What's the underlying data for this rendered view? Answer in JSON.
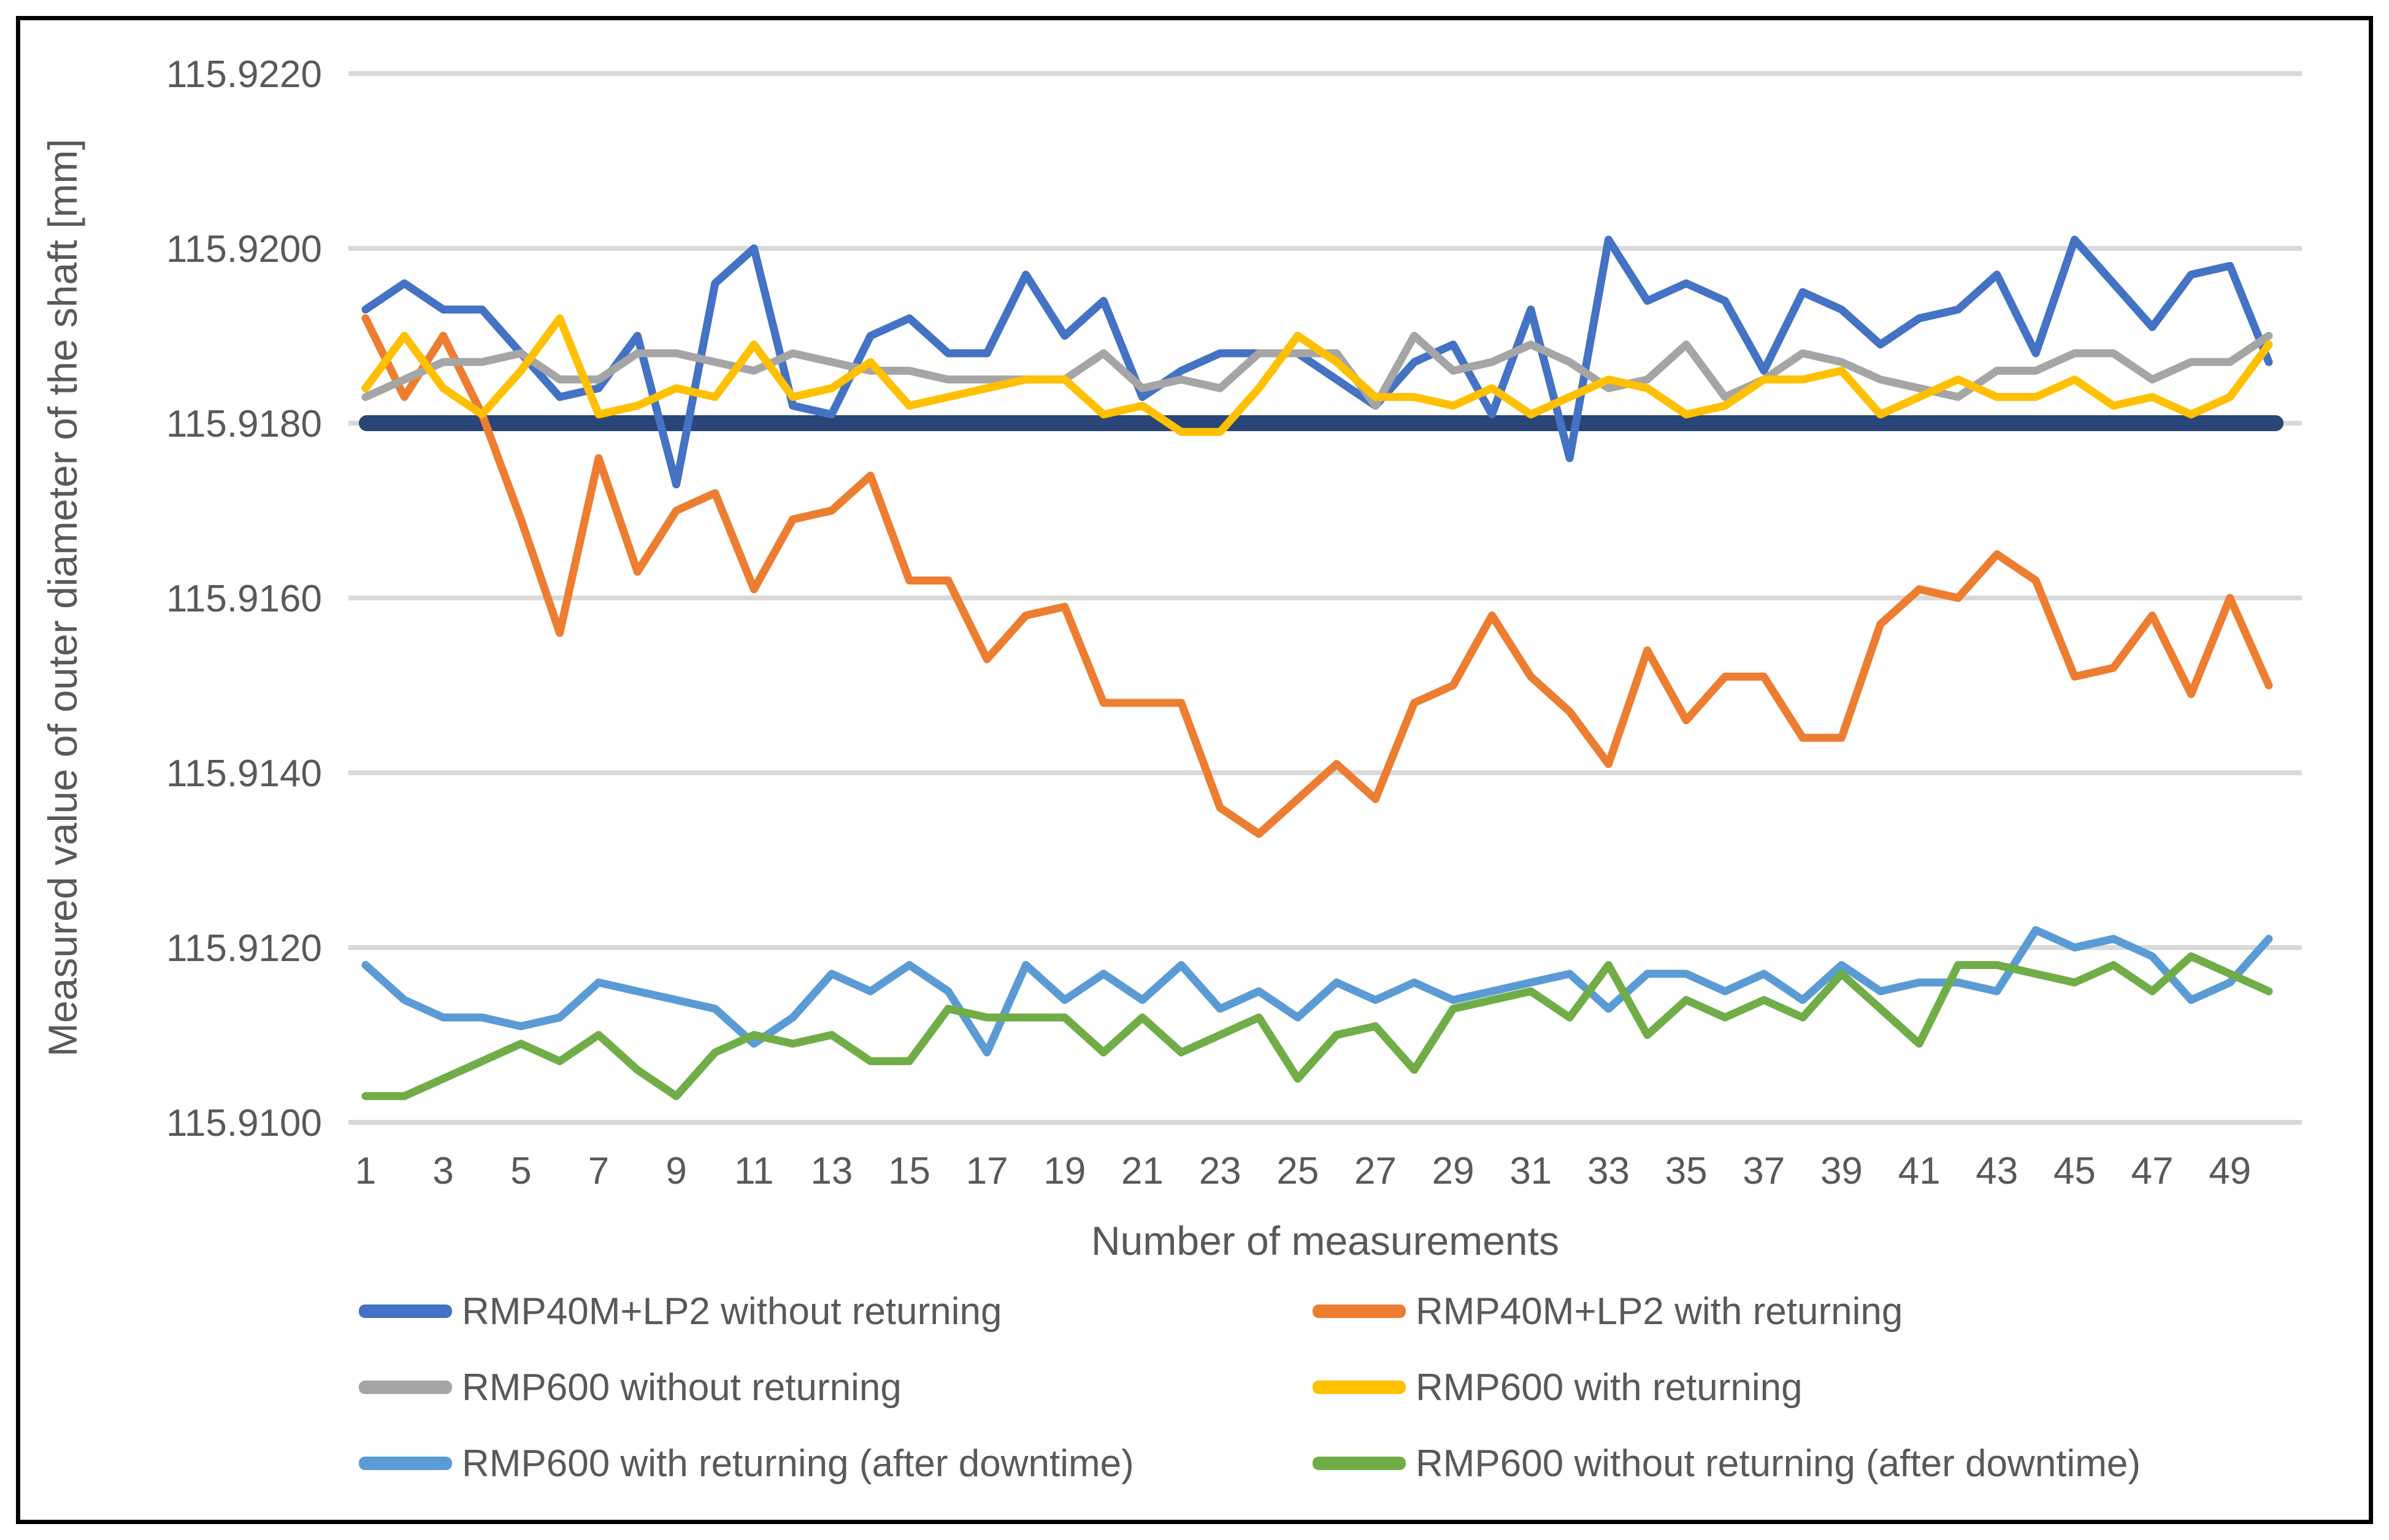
{
  "figure": {
    "background": "#ffffff",
    "border_color": "#000000",
    "text_color": "#595959",
    "gridline_color": "#d9d9d9"
  },
  "chart_data": {
    "type": "line",
    "title": "",
    "xlabel": "Number of measurements",
    "ylabel": "Measured value of outer diameter of the shaft [mm]",
    "x": [
      1,
      2,
      3,
      4,
      5,
      6,
      7,
      8,
      9,
      10,
      11,
      12,
      13,
      14,
      15,
      16,
      17,
      18,
      19,
      20,
      21,
      22,
      23,
      24,
      25,
      26,
      27,
      28,
      29,
      30,
      31,
      32,
      33,
      34,
      35,
      36,
      37,
      38,
      39,
      40,
      41,
      42,
      43,
      44,
      45,
      46,
      47,
      48,
      49,
      50
    ],
    "x_tick_labels": [
      "1",
      "3",
      "5",
      "7",
      "9",
      "11",
      "13",
      "15",
      "17",
      "19",
      "21",
      "23",
      "25",
      "27",
      "29",
      "31",
      "33",
      "35",
      "37",
      "39",
      "41",
      "43",
      "45",
      "47",
      "49"
    ],
    "y_ticks": [
      "115.9100",
      "115.9120",
      "115.9140",
      "115.9160",
      "115.9180",
      "115.9200",
      "115.9220"
    ],
    "ylim": [
      115.9095,
      115.9225
    ],
    "grid": "horizontal",
    "legend_position": "bottom-two-columns",
    "reference_line": {
      "name": "nominal-value-line",
      "value": 115.918,
      "color": "#2a4577"
    },
    "series": [
      {
        "name": "RMP40M+LP2 without returning",
        "color": "#4472c4",
        "values": [
          115.9193,
          115.9196,
          115.9193,
          115.9193,
          115.9188,
          115.9183,
          115.9184,
          115.919,
          115.9173,
          115.9196,
          115.92,
          115.9182,
          115.9181,
          115.919,
          115.9192,
          115.9188,
          115.9188,
          115.9197,
          115.919,
          115.9194,
          115.9183,
          115.9186,
          115.9188,
          115.9188,
          115.9188,
          115.9185,
          115.9182,
          115.9187,
          115.9189,
          115.9181,
          115.9193,
          115.9176,
          115.9201,
          115.9194,
          115.9196,
          115.9194,
          115.9186,
          115.9195,
          115.9193,
          115.9189,
          115.9192,
          115.9193,
          115.9197,
          115.9188,
          115.9201,
          115.9196,
          115.9191,
          115.9197,
          115.9198,
          115.9187
        ]
      },
      {
        "name": "RMP40M+LP2 with returning",
        "color": "#ed7d31",
        "values": [
          115.9192,
          115.9183,
          115.919,
          115.9181,
          115.9169,
          115.9156,
          115.9176,
          115.9163,
          115.917,
          115.9172,
          115.9161,
          115.9169,
          115.917,
          115.9174,
          115.9162,
          115.9162,
          115.9153,
          115.9158,
          115.9159,
          115.9148,
          115.9148,
          115.9148,
          115.9136,
          115.9133,
          115.9137,
          115.9141,
          115.9137,
          115.9148,
          115.915,
          115.9158,
          115.9151,
          115.9147,
          115.9141,
          115.9154,
          115.9146,
          115.9151,
          115.9151,
          115.9144,
          115.9144,
          115.9157,
          115.9161,
          115.916,
          115.9165,
          115.9162,
          115.9151,
          115.9152,
          115.9158,
          115.9149,
          115.916,
          115.915
        ]
      },
      {
        "name": "RMP600 without returning",
        "color": "#a5a5a5",
        "values": [
          115.9183,
          115.9185,
          115.9187,
          115.9187,
          115.9188,
          115.9185,
          115.9185,
          115.9188,
          115.9188,
          115.9187,
          115.9186,
          115.9188,
          115.9187,
          115.9186,
          115.9186,
          115.9185,
          115.9185,
          115.9185,
          115.9185,
          115.9188,
          115.9184,
          115.9185,
          115.9184,
          115.9188,
          115.9188,
          115.9188,
          115.9182,
          115.919,
          115.9186,
          115.9187,
          115.9189,
          115.9187,
          115.9184,
          115.9185,
          115.9189,
          115.9183,
          115.9185,
          115.9188,
          115.9187,
          115.9185,
          115.9184,
          115.9183,
          115.9186,
          115.9186,
          115.9188,
          115.9188,
          115.9185,
          115.9187,
          115.9187,
          115.919
        ]
      },
      {
        "name": "RMP600 with returning",
        "color": "#ffc000",
        "values": [
          115.9184,
          115.919,
          115.9184,
          115.9181,
          115.9186,
          115.9192,
          115.9181,
          115.9182,
          115.9184,
          115.9183,
          115.9189,
          115.9183,
          115.9184,
          115.9187,
          115.9182,
          115.9183,
          115.9184,
          115.9185,
          115.9185,
          115.9181,
          115.9182,
          115.9179,
          115.9179,
          115.9184,
          115.919,
          115.9187,
          115.9183,
          115.9183,
          115.9182,
          115.9184,
          115.9181,
          115.9183,
          115.9185,
          115.9184,
          115.9181,
          115.9182,
          115.9185,
          115.9185,
          115.9186,
          115.9181,
          115.9183,
          115.9185,
          115.9183,
          115.9183,
          115.9185,
          115.9182,
          115.9183,
          115.9181,
          115.9183,
          115.9189
        ]
      },
      {
        "name": "RMP600 with returning (after downtime)",
        "color": "#5b9bd5",
        "values": [
          115.9118,
          115.9114,
          115.9112,
          115.9112,
          115.9111,
          115.9112,
          115.9116,
          115.9115,
          115.9114,
          115.9113,
          115.9109,
          115.9112,
          115.9117,
          115.9115,
          115.9118,
          115.9115,
          115.9108,
          115.9118,
          115.9114,
          115.9117,
          115.9114,
          115.9118,
          115.9113,
          115.9115,
          115.9112,
          115.9116,
          115.9114,
          115.9116,
          115.9114,
          115.9115,
          115.9116,
          115.9117,
          115.9113,
          115.9117,
          115.9117,
          115.9115,
          115.9117,
          115.9114,
          115.9118,
          115.9115,
          115.9116,
          115.9116,
          115.9115,
          115.9122,
          115.912,
          115.9121,
          115.9119,
          115.9114,
          115.9116,
          115.9121
        ]
      },
      {
        "name": "RMP600 without returning (after downtime)",
        "color": "#70ad47",
        "values": [
          115.9103,
          115.9103,
          115.9105,
          115.9107,
          115.9109,
          115.9107,
          115.911,
          115.9106,
          115.9103,
          115.9108,
          115.911,
          115.9109,
          115.911,
          115.9107,
          115.9107,
          115.9113,
          115.9112,
          115.9112,
          115.9112,
          115.9108,
          115.9112,
          115.9108,
          115.911,
          115.9112,
          115.9105,
          115.911,
          115.9111,
          115.9106,
          115.9113,
          115.9114,
          115.9115,
          115.9112,
          115.9118,
          115.911,
          115.9114,
          115.9112,
          115.9114,
          115.9112,
          115.9117,
          115.9113,
          115.9109,
          115.9118,
          115.9118,
          115.9117,
          115.9116,
          115.9118,
          115.9115,
          115.9119,
          115.9117,
          115.9115
        ]
      }
    ]
  }
}
